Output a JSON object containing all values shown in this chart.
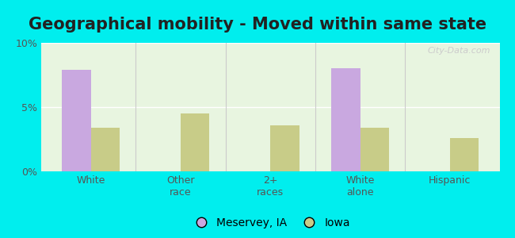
{
  "title": "Geographical mobility - Moved within same state",
  "categories": [
    "White",
    "Other\nrace",
    "2+\nraces",
    "White\nalone",
    "Hispanic"
  ],
  "meservey_values": [
    7.9,
    0,
    0,
    8.0,
    0
  ],
  "iowa_values": [
    3.4,
    4.5,
    3.6,
    3.4,
    2.6
  ],
  "meservey_color": "#c9a8e0",
  "iowa_color": "#c8cc88",
  "background_color": "#00eeee",
  "plot_bg_color": "#e8f5e0",
  "ylim": [
    0,
    10
  ],
  "yticks": [
    0,
    5,
    10
  ],
  "ytick_labels": [
    "0%",
    "5%",
    "10%"
  ],
  "legend_labels": [
    "Meservey, IA",
    "Iowa"
  ],
  "bar_width": 0.32,
  "title_fontsize": 15,
  "tick_fontsize": 9,
  "legend_fontsize": 10
}
